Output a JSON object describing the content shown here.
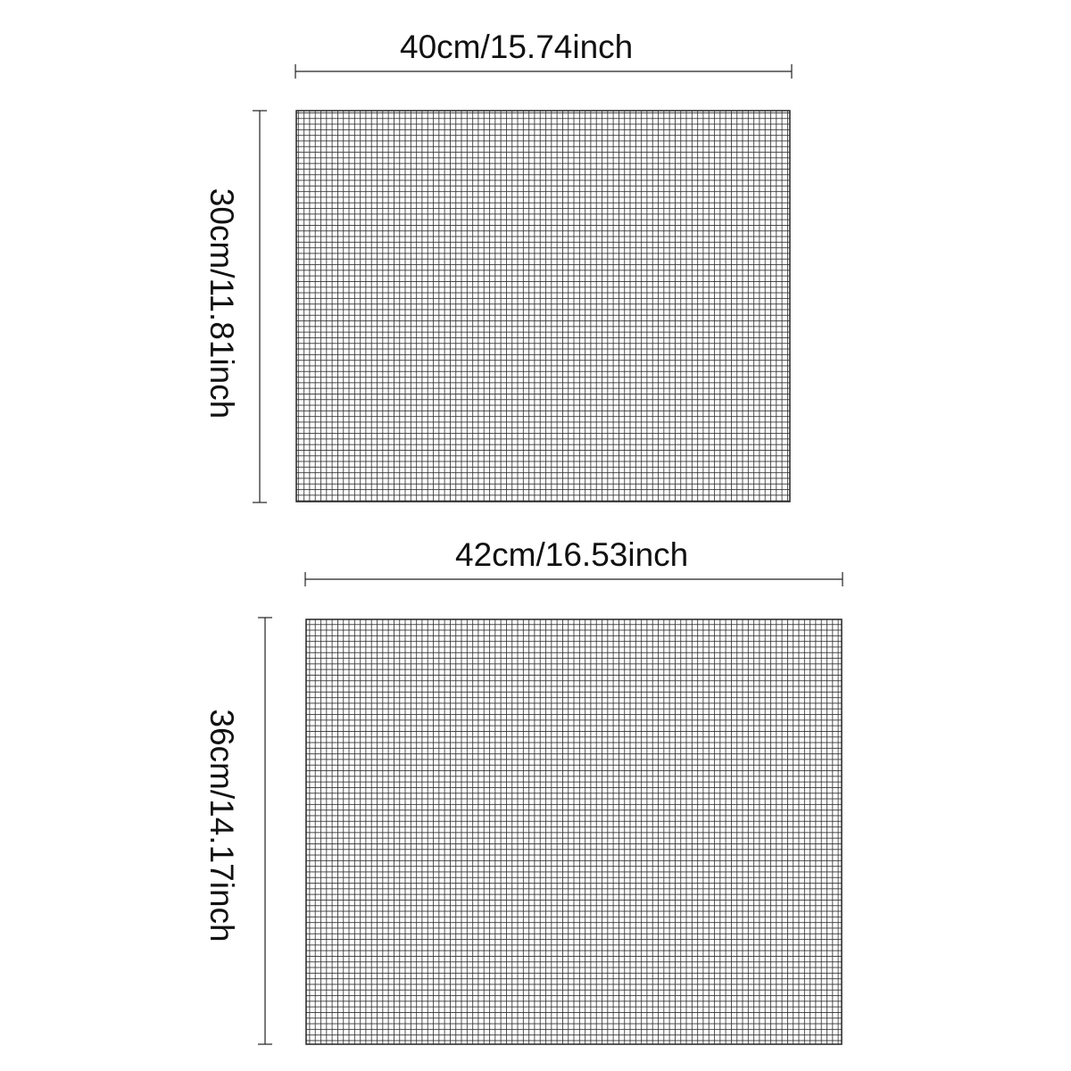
{
  "mats": [
    {
      "width_label": "40cm/15.74inch",
      "height_label": "30cm/11.81inch"
    },
    {
      "width_label": "42cm/16.53inch",
      "height_label": "36cm/14.17inch"
    }
  ],
  "colors": {
    "line": "#222222",
    "mesh": "#2a2a2a",
    "background": "#ffffff"
  }
}
